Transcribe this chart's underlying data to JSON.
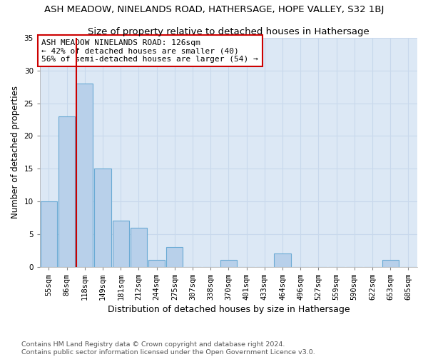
{
  "title": "ASH MEADOW, NINELANDS ROAD, HATHERSAGE, HOPE VALLEY, S32 1BJ",
  "subtitle": "Size of property relative to detached houses in Hathersage",
  "xlabel": "Distribution of detached houses by size in Hathersage",
  "ylabel": "Number of detached properties",
  "categories": [
    "55sqm",
    "86sqm",
    "118sqm",
    "149sqm",
    "181sqm",
    "212sqm",
    "244sqm",
    "275sqm",
    "307sqm",
    "338sqm",
    "370sqm",
    "401sqm",
    "433sqm",
    "464sqm",
    "496sqm",
    "527sqm",
    "559sqm",
    "590sqm",
    "622sqm",
    "653sqm",
    "685sqm"
  ],
  "values": [
    10,
    23,
    28,
    15,
    7,
    6,
    1,
    3,
    0,
    0,
    1,
    0,
    0,
    2,
    0,
    0,
    0,
    0,
    0,
    1,
    0
  ],
  "bar_color": "#b8d0ea",
  "bar_edge_color": "#6aaad4",
  "grid_color": "#c8d8ec",
  "background_color": "#dce8f5",
  "plot_bg_color": "#dce8f5",
  "vline_color": "#cc0000",
  "vline_index": 2,
  "annotation_text": "ASH MEADOW NINELANDS ROAD: 126sqm\n← 42% of detached houses are smaller (40)\n56% of semi-detached houses are larger (54) →",
  "annotation_box_color": "white",
  "annotation_box_edge": "#cc0000",
  "ylim": [
    0,
    35
  ],
  "yticks": [
    0,
    5,
    10,
    15,
    20,
    25,
    30,
    35
  ],
  "footer": "Contains HM Land Registry data © Crown copyright and database right 2024.\nContains public sector information licensed under the Open Government Licence v3.0.",
  "title_fontsize": 9.5,
  "subtitle_fontsize": 9.5,
  "xlabel_fontsize": 9,
  "ylabel_fontsize": 8.5,
  "tick_fontsize": 7.5,
  "footer_fontsize": 6.8,
  "annotation_fontsize": 8
}
